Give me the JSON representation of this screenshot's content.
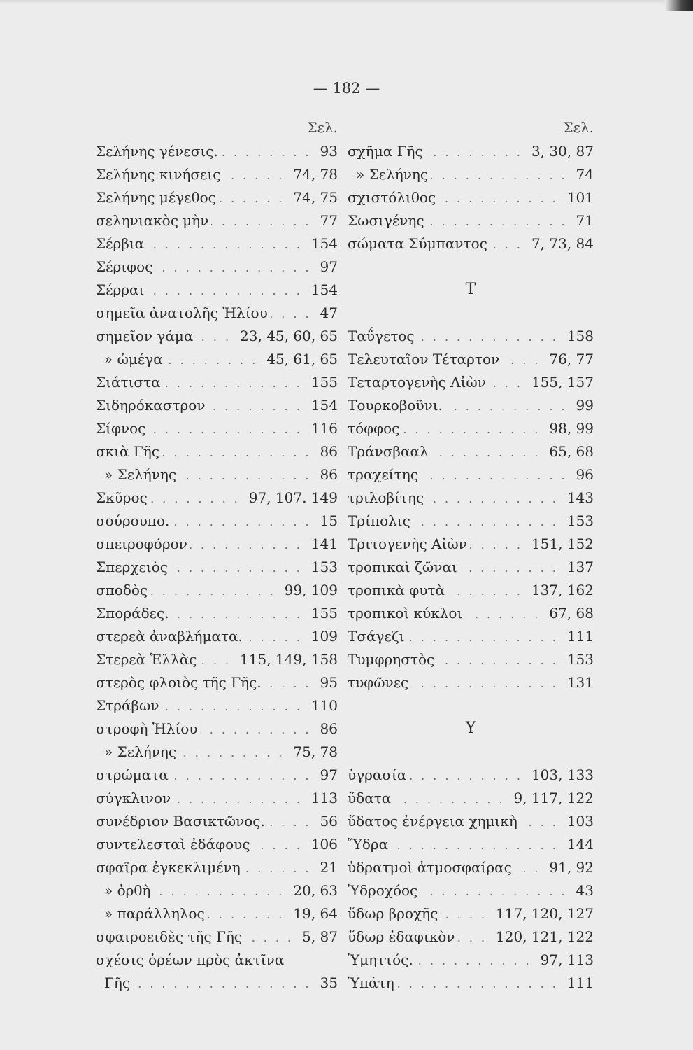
{
  "page_number": "— 182 —",
  "column_header": "Σελ.",
  "left_column": [
    {
      "term": "Σελήνης γένεσις.",
      "pages": "93"
    },
    {
      "term": "Σελήνης κινήσεις",
      "pages": "74, 78"
    },
    {
      "term": "Σελήνης μέγεθος",
      "pages": "74, 75"
    },
    {
      "term": "σεληνιακὸς μὴν",
      "pages": "77"
    },
    {
      "term": "Σέρβια",
      "pages": "154"
    },
    {
      "term": "Σέριφος",
      "pages": "97"
    },
    {
      "term": "Σέρραι",
      "pages": "154"
    },
    {
      "term": "σημεῖα ἀνατολῆς Ἡλίου",
      "pages": "47"
    },
    {
      "term": "σημεῖον γάμα",
      "pages": "23, 45, 60, 65"
    },
    {
      "term": "»    ὠμέγα",
      "pages": "45, 61, 65",
      "indent": true
    },
    {
      "term": "Σιάτιστα",
      "pages": "155"
    },
    {
      "term": "Σιδηρόκαστρον",
      "pages": "154"
    },
    {
      "term": "Σίφνος",
      "pages": "116"
    },
    {
      "term": "σκιὰ Γῆς",
      "pages": "86"
    },
    {
      "term": "»   Σελήνης",
      "pages": "86",
      "indent": true
    },
    {
      "term": "Σκῦρος",
      "pages": "97, 107. 149"
    },
    {
      "term": "σούρουπο.",
      "pages": "15"
    },
    {
      "term": "σπειροφόρον",
      "pages": "141"
    },
    {
      "term": "Σπερχειὸς",
      "pages": "153"
    },
    {
      "term": "σποδὸς",
      "pages": "99, 109"
    },
    {
      "term": "Σποράδες.",
      "pages": "155"
    },
    {
      "term": "στερεὰ ἀναβλήματα.",
      "pages": "109"
    },
    {
      "term": "Στερεὰ Ἑλλὰς",
      "pages": "115, 149, 158"
    },
    {
      "term": "στερὸς φλοιὸς τῆς Γῆς.",
      "pages": "95"
    },
    {
      "term": "Στράβων",
      "pages": "110"
    },
    {
      "term": "στροφὴ Ἡλίου",
      "pages": "86"
    },
    {
      "term": "»    Σελήνης",
      "pages": "75, 78",
      "indent": true
    },
    {
      "term": "στρώματα",
      "pages": "97"
    },
    {
      "term": "σύγκλινον",
      "pages": "113"
    },
    {
      "term": "συνέδριον Βασικτῶνος.",
      "pages": "56"
    },
    {
      "term": "συντελεσταὶ ἐδάφους",
      "pages": "106"
    },
    {
      "term": "σφαῖρα ἐγκεκλιμένη",
      "pages": "21"
    },
    {
      "term": "»    ὀρθὴ",
      "pages": "20, 63",
      "indent": true
    },
    {
      "term": "»    παράλληλος",
      "pages": "19, 64",
      "indent": true
    },
    {
      "term": "σφαιροειδὲς τῆς Γῆς",
      "pages": "5, 87"
    },
    {
      "term": "σχέσις ὀρέων πρὸς ἀκτῖνα",
      "pages": ""
    },
    {
      "term": "Γῆς",
      "pages": "35",
      "indent": true
    }
  ],
  "right_column": [
    {
      "term": "σχῆμα Γῆς",
      "pages": "3, 30, 87"
    },
    {
      "term": "»   Σελήνης",
      "pages": "74",
      "indent": true
    },
    {
      "term": "σχιστόλιθος",
      "pages": "101"
    },
    {
      "term": "Σωσιγένης",
      "pages": "71"
    },
    {
      "term": "σώματα Σύμπαντος",
      "pages": "7, 73, 84"
    },
    {
      "blank": true
    },
    {
      "heading": "Τ"
    },
    {
      "blank": true
    },
    {
      "term": "Ταΰγετος",
      "pages": "158"
    },
    {
      "term": "Τελευταῖον Τέταρτον",
      "pages": "76, 77"
    },
    {
      "term": "Τεταρτογενὴς Αἰὼν",
      "pages": "155, 157"
    },
    {
      "term": "Τουρκοβοῦνι.",
      "pages": "99"
    },
    {
      "term": "τόφφος",
      "pages": "98, 99"
    },
    {
      "term": "Τράνσβααλ",
      "pages": "65, 68"
    },
    {
      "term": "τραχείτης",
      "pages": "96"
    },
    {
      "term": "τριλοβίτης",
      "pages": "143"
    },
    {
      "term": "Τρίπολις",
      "pages": "153"
    },
    {
      "term": "Τριτογενὴς Αἰὼν",
      "pages": "151, 152"
    },
    {
      "term": "τροπικαὶ ζῶναι",
      "pages": "137"
    },
    {
      "term": "τροπικὰ φυτὰ",
      "pages": "137, 162"
    },
    {
      "term": "τροπικοὶ κύκλοι",
      "pages": "67, 68"
    },
    {
      "term": "Τσάγεζι",
      "pages": "111"
    },
    {
      "term": "Τυμφρηστὸς",
      "pages": "153"
    },
    {
      "term": "τυφῶνες",
      "pages": "131"
    },
    {
      "blank": true
    },
    {
      "heading": "Υ"
    },
    {
      "blank": true
    },
    {
      "term": "ὑγρασία",
      "pages": "103, 133"
    },
    {
      "term": "ὕδατα",
      "pages": "9, 117, 122"
    },
    {
      "term": "ὕδατος ἐνέργεια χημικὴ",
      "pages": "103"
    },
    {
      "term": "Ὕδρα",
      "pages": "144"
    },
    {
      "term": "ὑδρατμοὶ ἀτμοσφαίρας",
      "pages": "91, 92"
    },
    {
      "term": "Ὑδροχόος",
      "pages": "43"
    },
    {
      "term": "ὕδωρ βροχῆς",
      "pages": "117, 120, 127"
    },
    {
      "term": "ὕδωρ ἐδαφικὸν",
      "pages": "120, 121, 122"
    },
    {
      "term": "Ὑμηττός.",
      "pages": "97, 113"
    },
    {
      "term": "Ὑπάτη",
      "pages": "111"
    }
  ]
}
